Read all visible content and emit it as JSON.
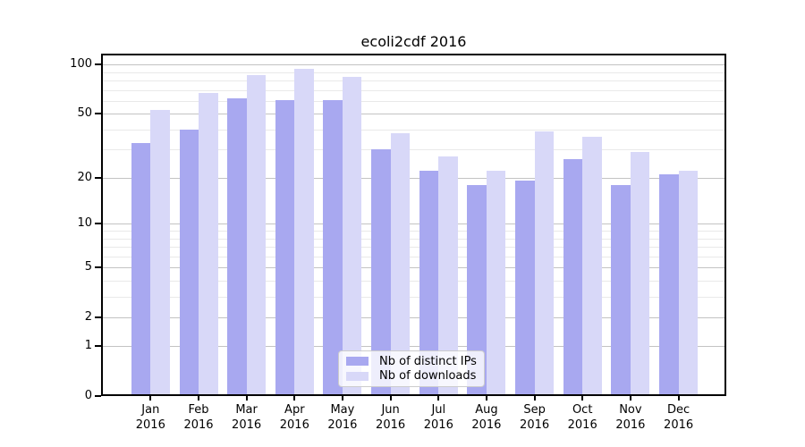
{
  "chart_data": {
    "type": "bar",
    "title": "ecoli2cdf 2016",
    "yscale": "log-like (0, 1, 2, 5, 10, 20, 50, 100)",
    "categories": [
      "Jan",
      "Feb",
      "Mar",
      "Apr",
      "May",
      "Jun",
      "Jul",
      "Aug",
      "Sep",
      "Oct",
      "Nov",
      "Dec"
    ],
    "category_year": "2016",
    "series": [
      {
        "name": "Nb of distinct IPs",
        "color": "#a8a8f0",
        "values": [
          33,
          40,
          62,
          61,
          61,
          30,
          22,
          18,
          19,
          26,
          18,
          21
        ]
      },
      {
        "name": "Nb of downloads",
        "color": "#d8d8f8",
        "values": [
          53,
          67,
          87,
          94,
          84,
          38,
          27,
          22,
          39,
          36,
          29,
          22
        ]
      }
    ],
    "yticks": [
      0,
      1,
      2,
      5,
      10,
      20,
      50,
      100
    ],
    "yticks_minor": [
      3,
      4,
      6,
      7,
      8,
      9,
      30,
      40,
      60,
      70,
      80,
      90
    ],
    "ylim": [
      0,
      117
    ],
    "xlabel": "",
    "ylabel": "",
    "grid": "both",
    "legend_position": "lower-center"
  },
  "colors": {
    "background": "#ffffff",
    "grid_major": "#c3c3c3",
    "grid_minor": "#e9e9e9",
    "axis": "#000000"
  }
}
